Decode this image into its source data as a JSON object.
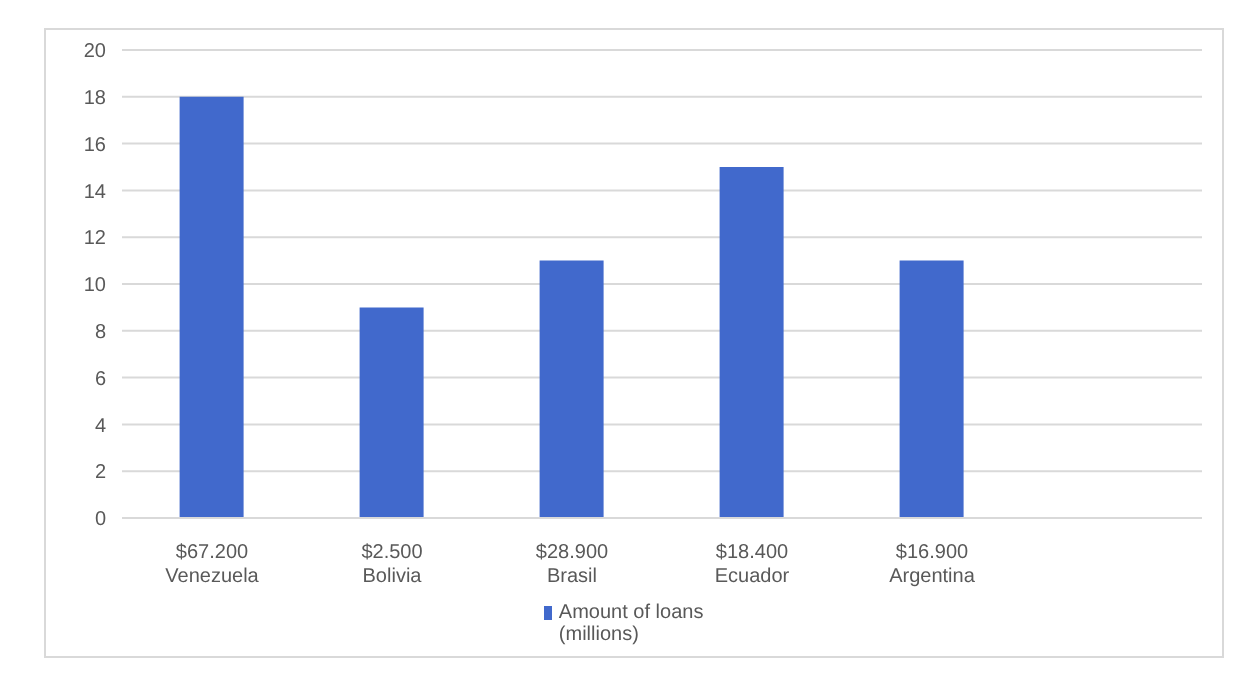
{
  "chart_data": {
    "type": "bar",
    "categories": [
      "$67.200\nVenezuela",
      "$2.500\nBolivia",
      "$28.900\nBrasil",
      "$18.400\nEcuador",
      "$16.900\nArgentina",
      null
    ],
    "series": [
      {
        "name": "Amount of loans (millions)",
        "color": "#4169cc",
        "values": [
          18,
          9,
          11,
          15,
          11,
          null
        ]
      }
    ],
    "ylim": [
      0,
      20
    ],
    "yticks": [
      0,
      2,
      4,
      6,
      8,
      10,
      12,
      14,
      16,
      18,
      20
    ],
    "grid": "y",
    "legend": "bottom"
  }
}
